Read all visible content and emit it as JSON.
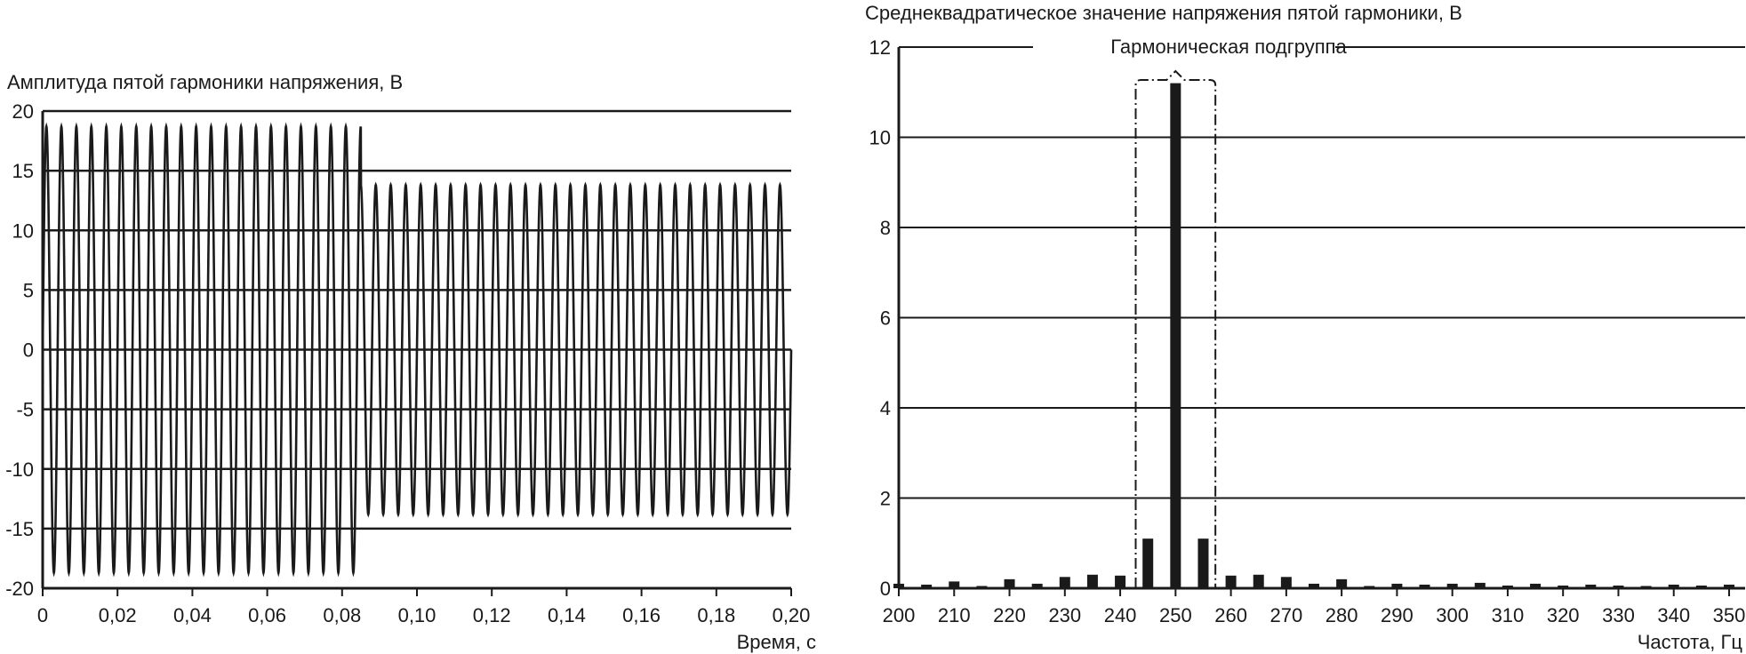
{
  "chart_data": [
    {
      "type": "line",
      "title": "Амплитуда пятой гармоники напряжения, В",
      "xlabel": "Время, с",
      "ylabel": "Амплитуда пятой гармоники напряжения, В",
      "xlim": [
        0,
        0.2
      ],
      "ylim": [
        -20,
        20
      ],
      "x_ticks": [
        "0",
        "0,02",
        "0,04",
        "0,06",
        "0,08",
        "0,10",
        "0,12",
        "0,14",
        "0,16",
        "0,18",
        "0,20"
      ],
      "y_ticks": [
        "20",
        "15",
        "10",
        "5",
        "0",
        "-5",
        "-10",
        "-15",
        "-20"
      ],
      "grid": "horizontal",
      "series": [
        {
          "frequency_hz": 250,
          "segments": [
            {
              "t_start": 0,
              "t_end": 0.085,
              "amplitude": 18.7
            },
            {
              "t_start": 0.085,
              "t_end": 0.2,
              "amplitude": 13.8
            }
          ],
          "color": "#1a1a1a"
        }
      ]
    },
    {
      "type": "bar",
      "title": "Среднеквадратическое значение напряжения пятой гармоники, В",
      "xlabel": "Частота, Гц",
      "ylabel": "Среднеквадратическое значение напряжения пятой гармоники, В",
      "xlim": [
        200,
        350
      ],
      "ylim": [
        0,
        12
      ],
      "x_ticks": [
        "200",
        "210",
        "220",
        "230",
        "240",
        "250",
        "260",
        "270",
        "280",
        "290",
        "300",
        "310",
        "320",
        "330",
        "340",
        "350"
      ],
      "y_ticks": [
        "12",
        "10",
        "8",
        "6",
        "4",
        "2",
        "0"
      ],
      "grid": "horizontal",
      "annotation": {
        "text": "Гармоническая подгруппа",
        "x_range": [
          245,
          255
        ]
      },
      "x": [
        200,
        205,
        210,
        215,
        220,
        225,
        230,
        235,
        240,
        245,
        250,
        255,
        260,
        265,
        270,
        275,
        280,
        285,
        290,
        295,
        300,
        305,
        310,
        315,
        320,
        325,
        330,
        335,
        340,
        345,
        350
      ],
      "values": [
        0.1,
        0.08,
        0.15,
        0.05,
        0.2,
        0.1,
        0.25,
        0.3,
        0.28,
        1.1,
        11.2,
        1.1,
        0.28,
        0.3,
        0.25,
        0.1,
        0.2,
        0.05,
        0.1,
        0.08,
        0.1,
        0.12,
        0.06,
        0.1,
        0.06,
        0.08,
        0.06,
        0.05,
        0.08,
        0.06,
        0.08
      ],
      "color": "#1a1a1a"
    }
  ]
}
